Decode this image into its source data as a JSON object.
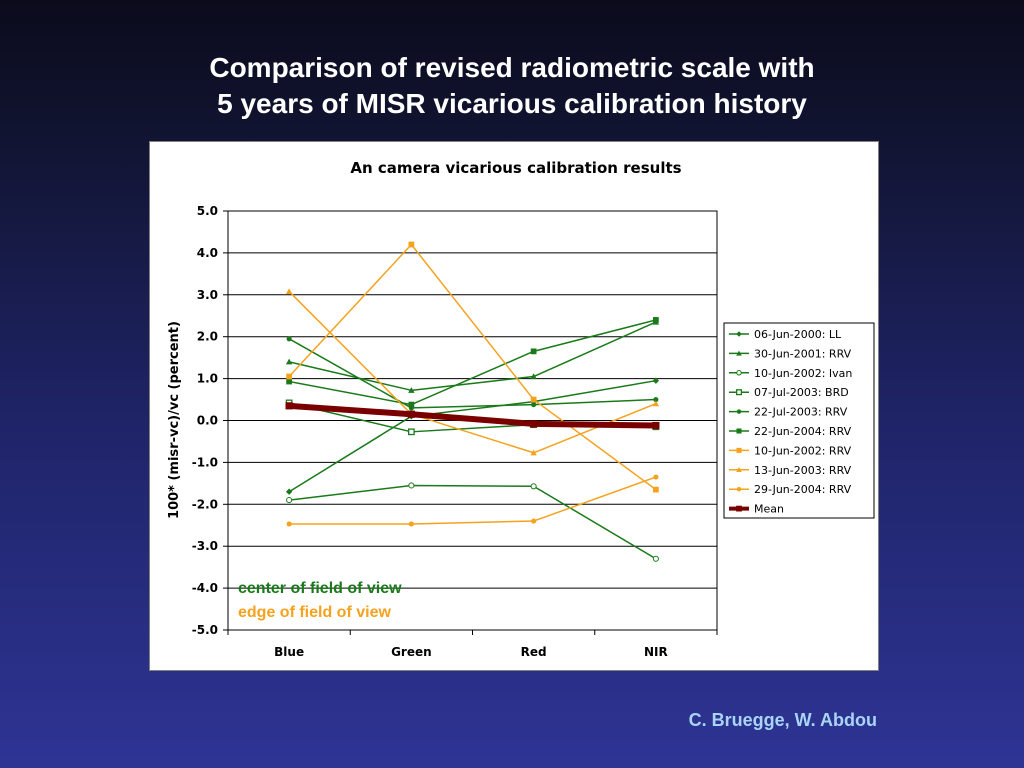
{
  "slide": {
    "title_line1": "Comparison of revised radiometric scale with",
    "title_line2": "5 years of MISR vicarious calibration history",
    "credit": "C. Bruegge, W. Abdou"
  },
  "notes": {
    "center": "center of field of view",
    "edge": "edge of field of view"
  },
  "colors": {
    "green": "#1a7a1a",
    "orange": "#f5a21e",
    "mean": "#7a0000"
  },
  "chart_data": {
    "type": "line",
    "title": "An camera vicarious calibration results",
    "xlabel": "",
    "ylabel": "100* (misr-vc)/vc (percent)",
    "categories": [
      "Blue",
      "Green",
      "Red",
      "NIR"
    ],
    "ylim": [
      -5.0,
      5.0
    ],
    "yticks": [
      "5.0",
      "4.0",
      "3.0",
      "2.0",
      "1.0",
      "0.0",
      "-1.0",
      "-2.0",
      "-3.0",
      "-4.0",
      "-5.0"
    ],
    "grid": true,
    "legend_position": "right",
    "series": [
      {
        "name": "06-Jun-2000: LL",
        "color": "#1a7a1a",
        "marker": "diamond",
        "values": [
          -1.7,
          0.1,
          0.45,
          0.95
        ]
      },
      {
        "name": "30-Jun-2001: RRV",
        "color": "#1a7a1a",
        "marker": "triangle",
        "values": [
          1.4,
          0.72,
          1.05,
          2.35
        ]
      },
      {
        "name": "10-Jun-2002: Ivan",
        "color": "#1a7a1a",
        "marker": "circle-open",
        "values": [
          -1.9,
          -1.55,
          -1.57,
          -3.3
        ]
      },
      {
        "name": "07-Jul-2003: BRD",
        "color": "#1a7a1a",
        "marker": "square-open",
        "values": [
          0.42,
          -0.27,
          -0.1,
          -0.15
        ]
      },
      {
        "name": "22-Jul-2003: RRV",
        "color": "#1a7a1a",
        "marker": "circle",
        "values": [
          1.95,
          0.3,
          0.38,
          0.5
        ]
      },
      {
        "name": "22-Jun-2004: RRV",
        "color": "#1a7a1a",
        "marker": "square",
        "values": [
          0.93,
          0.38,
          1.65,
          2.4
        ]
      },
      {
        "name": "10-Jun-2002: RRV",
        "color": "#f5a21e",
        "marker": "square",
        "values": [
          1.05,
          4.2,
          0.5,
          -1.65
        ]
      },
      {
        "name": "13-Jun-2003: RRV",
        "color": "#f5a21e",
        "marker": "triangle",
        "values": [
          3.08,
          0.15,
          -0.77,
          0.4
        ]
      },
      {
        "name": "29-Jun-2004: RRV",
        "color": "#f5a21e",
        "marker": "circle",
        "values": [
          -2.47,
          -2.47,
          -2.4,
          -1.35
        ]
      },
      {
        "name": "Mean",
        "color": "#7a0000",
        "marker": "square",
        "values": [
          0.35,
          0.15,
          -0.08,
          -0.12
        ]
      }
    ]
  }
}
